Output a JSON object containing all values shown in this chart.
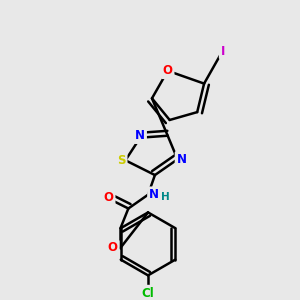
{
  "bg_color": "#e8e8e8",
  "bond_color": "#000000",
  "bond_width": 1.8,
  "atom_colors": {
    "N": "#0000ff",
    "O": "#ff0000",
    "S": "#cccc00",
    "Cl": "#00bb00",
    "I": "#cc00cc",
    "H": "#008888",
    "C": "#000000"
  },
  "font_size": 8.5,
  "fig_size": [
    3.0,
    3.0
  ],
  "dpi": 100
}
